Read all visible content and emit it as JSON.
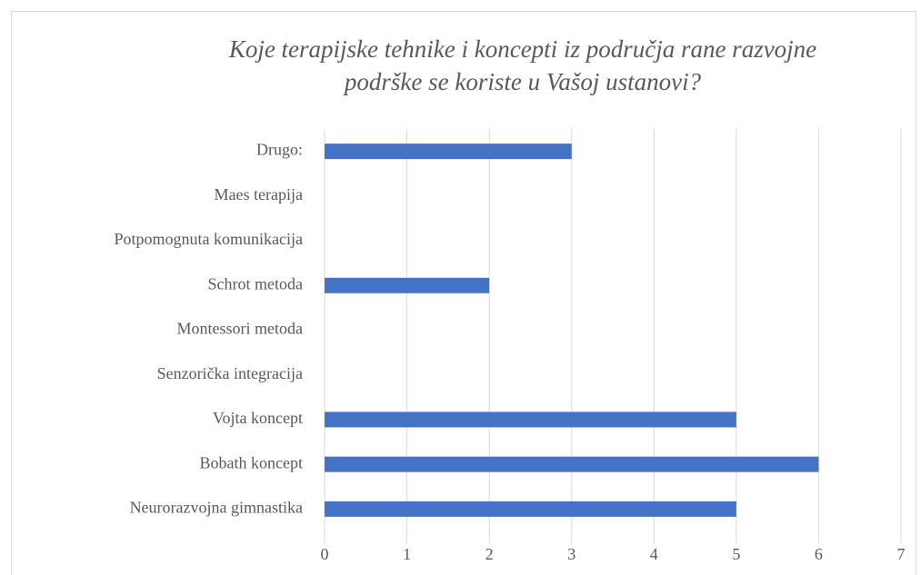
{
  "chart_data": {
    "type": "barh",
    "title": "Koje terapijske tehnike i koncepti iz područja rane razvojne podrške se koriste u Vašoj ustanovi?",
    "categories": [
      "Drugo:",
      "Maes terapija",
      "Potpomognuta komunikacija",
      "Schrot metoda",
      "Montessori metoda",
      "Senzorička integracija",
      "Vojta koncept",
      "Bobath koncept",
      "Neurorazvojna gimnastika"
    ],
    "values": [
      3,
      0,
      0,
      2,
      0,
      0,
      5,
      6,
      5
    ],
    "color": "#4472c4",
    "xlim": [
      0,
      7
    ],
    "xticks": [
      0,
      1,
      2,
      3,
      4,
      5,
      6,
      7
    ],
    "grid": true
  }
}
